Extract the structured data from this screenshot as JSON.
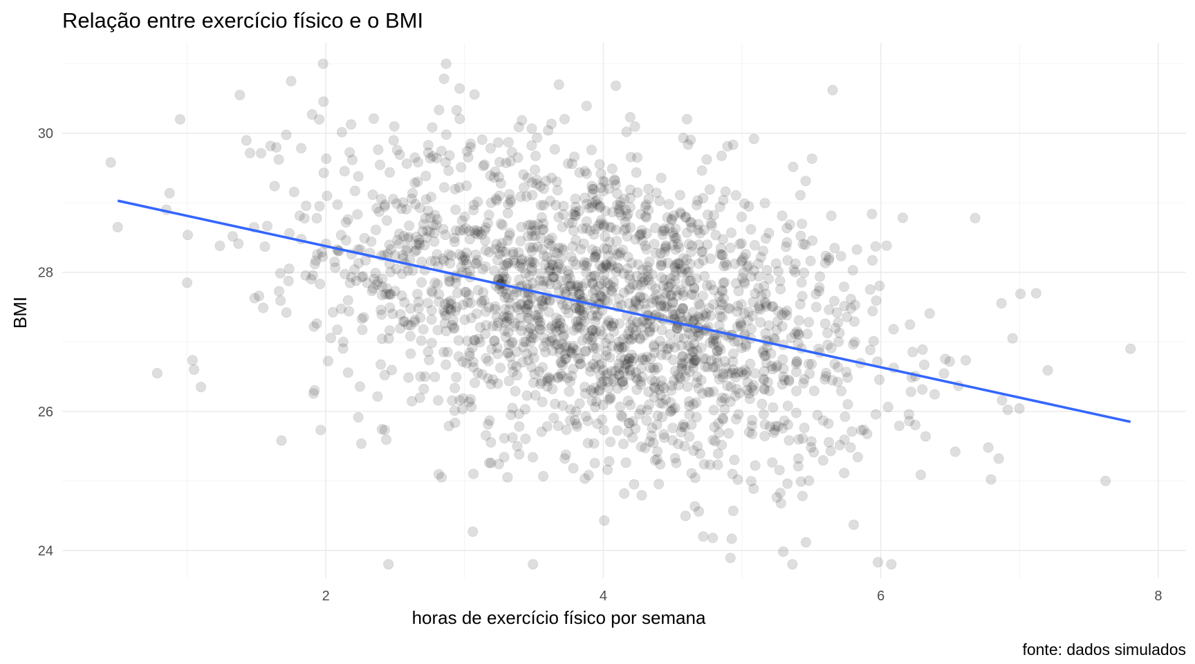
{
  "chart_data": {
    "type": "scatter",
    "title": "Relação entre exercício físico e o BMI",
    "xlabel": "horas de exercício físico por semana",
    "ylabel": "BMI",
    "caption": "fonte: dados simulados",
    "xlim": [
      0.1,
      8.2
    ],
    "ylim": [
      23.6,
      31.3
    ],
    "x_ticks": [
      2,
      4,
      6,
      8
    ],
    "y_ticks": [
      24,
      26,
      28,
      30
    ],
    "grid": true,
    "legend": "none",
    "point_color": "#000000",
    "point_alpha": 0.13,
    "line_color": "#3366ff",
    "regression_line": {
      "x": [
        0.5,
        7.8
      ],
      "y": [
        29.03,
        25.85
      ]
    },
    "n_points": 2000,
    "x_mean": 4.0,
    "x_sd": 1.0,
    "y_mean": 27.5,
    "y_sd": 1.2,
    "outliers": [
      {
        "x": 0.5,
        "y": 28.65
      },
      {
        "x": 0.85,
        "y": 28.9
      },
      {
        "x": 1.0,
        "y": 27.85
      },
      {
        "x": 1.05,
        "y": 26.6
      },
      {
        "x": 1.1,
        "y": 26.35
      },
      {
        "x": 0.95,
        "y": 30.2
      },
      {
        "x": 1.98,
        "y": 31.0
      },
      {
        "x": 1.75,
        "y": 30.75
      },
      {
        "x": 3.68,
        "y": 30.7
      },
      {
        "x": 7.8,
        "y": 26.9
      },
      {
        "x": 7.62,
        "y": 25.0
      },
      {
        "x": 7.12,
        "y": 27.7
      },
      {
        "x": 6.95,
        "y": 27.05
      },
      {
        "x": 6.68,
        "y": 28.78
      },
      {
        "x": 6.85,
        "y": 25.32
      },
      {
        "x": 5.98,
        "y": 23.83
      },
      {
        "x": 4.72,
        "y": 24.2
      },
      {
        "x": 3.06,
        "y": 24.27
      },
      {
        "x": 1.68,
        "y": 25.58
      },
      {
        "x": 1.38,
        "y": 30.55
      }
    ]
  }
}
